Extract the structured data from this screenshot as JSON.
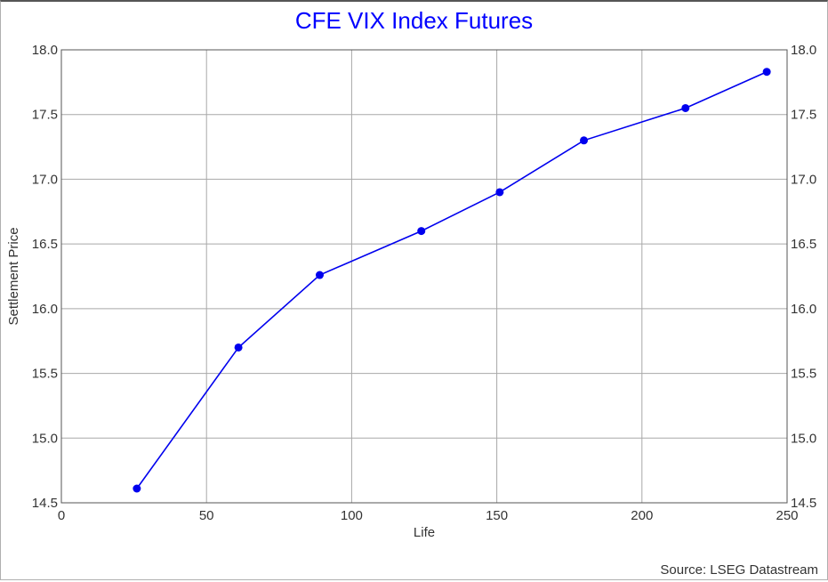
{
  "chart_data": {
    "type": "line",
    "title": "CFE VIX Index Futures",
    "xlabel": "Life",
    "ylabel": "Settlement Price",
    "xlim": [
      0,
      250
    ],
    "ylim": [
      14.5,
      18.0
    ],
    "xticks": [
      0,
      50,
      100,
      150,
      200,
      250
    ],
    "yticks": [
      "14.5",
      "15.0",
      "15.5",
      "16.0",
      "16.5",
      "17.0",
      "17.5",
      "18.0"
    ],
    "grid": true,
    "y_axis_right_mirror": true,
    "series": [
      {
        "color": "#0000ee",
        "x": [
          26,
          61,
          89,
          124,
          151,
          180,
          215,
          243
        ],
        "y": [
          14.61,
          15.7,
          16.26,
          16.6,
          16.9,
          17.3,
          17.55,
          17.83
        ]
      }
    ]
  },
  "source": "Source: LSEG Datastream"
}
